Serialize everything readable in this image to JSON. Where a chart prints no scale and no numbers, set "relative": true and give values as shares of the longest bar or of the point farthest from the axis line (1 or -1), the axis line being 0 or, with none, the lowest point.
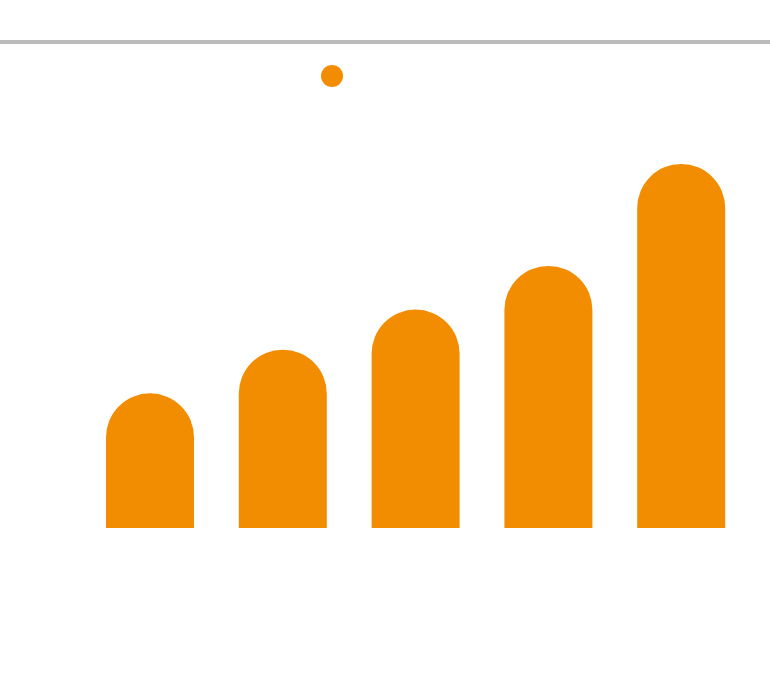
{
  "chart_data": {
    "type": "bar",
    "relative": true,
    "categories": [
      null,
      null,
      null,
      null,
      null
    ],
    "values": [
      0.37,
      0.49,
      0.6,
      0.72,
      1
    ],
    "color": "#f28c00"
  }
}
